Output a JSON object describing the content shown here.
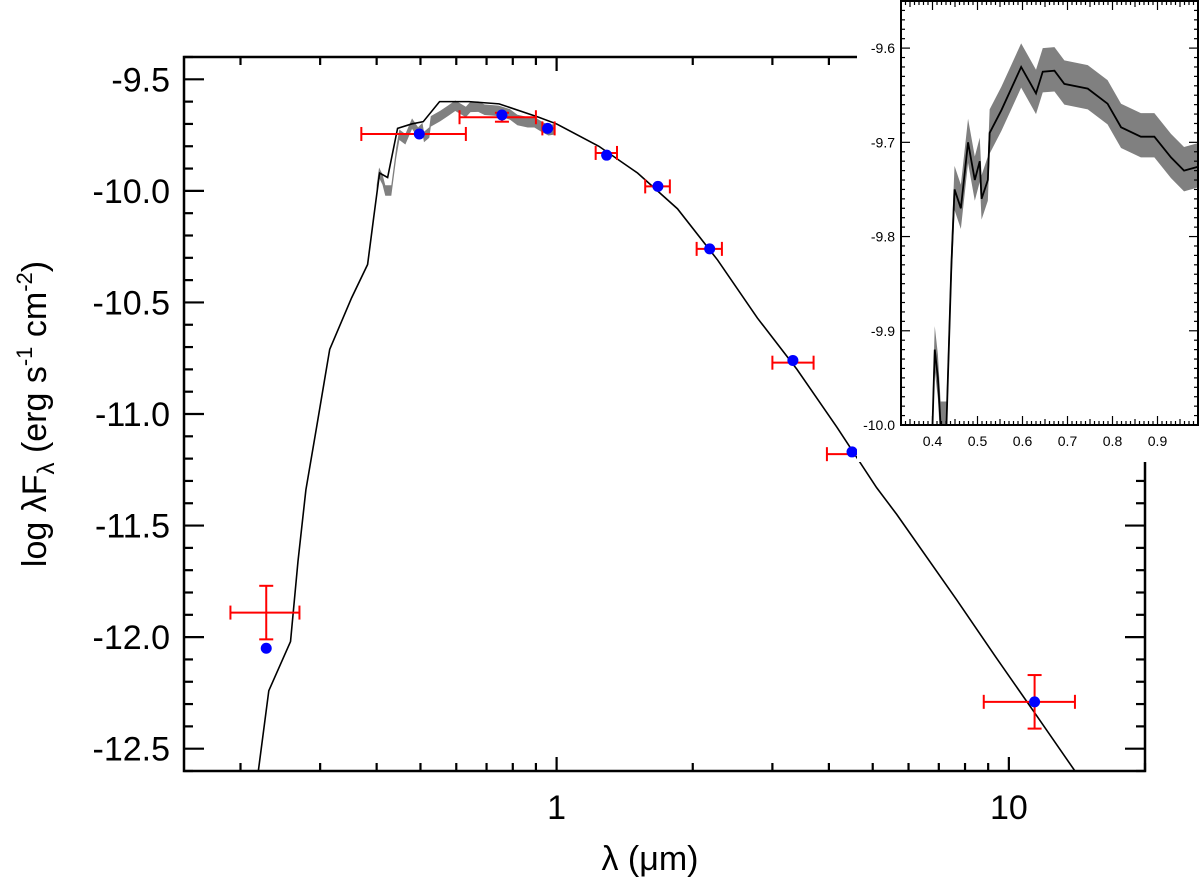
{
  "chart_data": [
    {
      "type": "scatter",
      "xlabel": "λ (μm)",
      "ylabel": "log λF",
      "ylabel_sub": "λ",
      "ylabel_units": " (erg s",
      "ylabel_units2": " cm",
      "ylabel_exp1": "-1",
      "ylabel_exp2": "-2",
      "ylabel_close": ")",
      "xscale": "log",
      "xlim": [
        0.15,
        20
      ],
      "ylim": [
        -12.6,
        -9.4
      ],
      "xticks": [
        {
          "v": 1,
          "label": "1"
        },
        {
          "v": 10,
          "label": "10"
        }
      ],
      "yticks": [
        {
          "v": -9.5,
          "label": "-9.5"
        },
        {
          "v": -10.0,
          "label": "-10.0"
        },
        {
          "v": -10.5,
          "label": "-10.5"
        },
        {
          "v": -11.0,
          "label": "-11.0"
        },
        {
          "v": -11.5,
          "label": "-11.5"
        },
        {
          "v": -12.0,
          "label": "-12.0"
        },
        {
          "v": -12.5,
          "label": "-12.5"
        }
      ],
      "grid": false,
      "colors": {
        "observed": "#ff0000",
        "model_points": "#0000ff",
        "model_spectrum": "#000000",
        "spectrum_band": "#808080"
      },
      "observed": [
        {
          "lambda": 0.228,
          "lambda_lo": 0.19,
          "lambda_hi": 0.27,
          "flux": -11.89,
          "flux_err": 0.12
        },
        {
          "lambda": 0.497,
          "lambda_lo": 0.37,
          "lambda_hi": 0.63,
          "flux": -9.745,
          "flux_err": 0.0
        },
        {
          "lambda": 0.757,
          "lambda_lo": 0.61,
          "lambda_hi": 0.9,
          "flux": -9.67,
          "flux_err": 0.02
        },
        {
          "lambda": 0.955,
          "lambda_lo": 0.93,
          "lambda_hi": 0.99,
          "flux": -9.72,
          "flux_err": 0.0
        },
        {
          "lambda": 1.29,
          "lambda_lo": 1.22,
          "lambda_hi": 1.36,
          "flux": -9.83,
          "flux_err": 0.0
        },
        {
          "lambda": 1.675,
          "lambda_lo": 1.57,
          "lambda_hi": 1.78,
          "flux": -9.98,
          "flux_err": 0.0
        },
        {
          "lambda": 2.18,
          "lambda_lo": 2.04,
          "lambda_hi": 2.32,
          "flux": -10.26,
          "flux_err": 0.0
        },
        {
          "lambda": 3.33,
          "lambda_lo": 3.0,
          "lambda_hi": 3.7,
          "flux": -10.77,
          "flux_err": 0.0
        },
        {
          "lambda": 4.5,
          "lambda_lo": 3.96,
          "lambda_hi": 5.1,
          "flux": -11.18,
          "flux_err": 0.0
        },
        {
          "lambda": 11.4,
          "lambda_lo": 8.8,
          "lambda_hi": 14.0,
          "flux": -12.29,
          "flux_err": 0.12
        }
      ],
      "model_points": [
        {
          "lambda": 0.228,
          "flux": -12.05
        },
        {
          "lambda": 0.497,
          "flux": -9.745
        },
        {
          "lambda": 0.757,
          "flux": -9.66
        },
        {
          "lambda": 0.955,
          "flux": -9.72
        },
        {
          "lambda": 1.29,
          "flux": -9.84
        },
        {
          "lambda": 1.675,
          "flux": -9.98
        },
        {
          "lambda": 2.18,
          "flux": -10.26
        },
        {
          "lambda": 3.33,
          "flux": -10.76
        },
        {
          "lambda": 4.5,
          "flux": -11.17
        },
        {
          "lambda": 11.4,
          "flux": -12.29
        }
      ],
      "model_spectrum": [
        [
          0.219,
          -12.6
        ],
        [
          0.231,
          -12.24
        ],
        [
          0.258,
          -12.02
        ],
        [
          0.268,
          -11.66
        ],
        [
          0.279,
          -11.34
        ],
        [
          0.294,
          -11.07
        ],
        [
          0.315,
          -10.71
        ],
        [
          0.352,
          -10.48
        ],
        [
          0.382,
          -10.33
        ],
        [
          0.394,
          -10.12
        ],
        [
          0.406,
          -9.92
        ],
        [
          0.423,
          -9.94
        ],
        [
          0.445,
          -9.72
        ],
        [
          0.478,
          -9.7
        ],
        [
          0.507,
          -9.69
        ],
        [
          0.551,
          -9.6
        ],
        [
          0.641,
          -9.6
        ],
        [
          0.746,
          -9.61
        ],
        [
          0.913,
          -9.67
        ],
        [
          1.0,
          -9.7
        ],
        [
          1.24,
          -9.8
        ],
        [
          1.51,
          -9.92
        ],
        [
          1.85,
          -10.08
        ],
        [
          2.27,
          -10.31
        ],
        [
          2.78,
          -10.57
        ],
        [
          3.4,
          -10.8
        ],
        [
          4.17,
          -11.06
        ],
        [
          5.1,
          -11.33
        ],
        [
          5.65,
          -11.45
        ],
        [
          7.65,
          -11.83
        ],
        [
          9.36,
          -12.09
        ],
        [
          11.5,
          -12.35
        ],
        [
          14.0,
          -12.6
        ]
      ]
    },
    {
      "type": "line",
      "xlim": [
        0.33,
        0.99
      ],
      "ylim": [
        -10.0,
        -9.55
      ],
      "xticks": [
        {
          "v": 0.4,
          "label": "0.4"
        },
        {
          "v": 0.5,
          "label": "0.5"
        },
        {
          "v": 0.6,
          "label": "0.6"
        },
        {
          "v": 0.7,
          "label": "0.7"
        },
        {
          "v": 0.8,
          "label": "0.8"
        },
        {
          "v": 0.9,
          "label": "0.9"
        }
      ],
      "yticks": [
        {
          "v": -9.6,
          "label": "-9.6"
        },
        {
          "v": -9.7,
          "label": "-9.7"
        },
        {
          "v": -9.8,
          "label": "-9.8"
        },
        {
          "v": -9.9,
          "label": "-9.9"
        },
        {
          "v": -10.0,
          "label": "-10.0"
        }
      ],
      "grid": false,
      "spectrum": [
        [
          0.4,
          -10.0
        ],
        [
          0.405,
          -9.92
        ],
        [
          0.412,
          -9.95
        ],
        [
          0.418,
          -10.0
        ],
        [
          0.431,
          -10.0
        ],
        [
          0.442,
          -9.83
        ],
        [
          0.449,
          -9.75
        ],
        [
          0.463,
          -9.77
        ],
        [
          0.479,
          -9.7
        ],
        [
          0.494,
          -9.74
        ],
        [
          0.505,
          -9.72
        ],
        [
          0.509,
          -9.76
        ],
        [
          0.523,
          -9.74
        ],
        [
          0.527,
          -9.69
        ],
        [
          0.553,
          -9.666
        ],
        [
          0.575,
          -9.643
        ],
        [
          0.597,
          -9.62
        ],
        [
          0.63,
          -9.648
        ],
        [
          0.645,
          -9.625
        ],
        [
          0.671,
          -9.624
        ],
        [
          0.693,
          -9.638
        ],
        [
          0.745,
          -9.643
        ],
        [
          0.789,
          -9.659
        ],
        [
          0.819,
          -9.684
        ],
        [
          0.863,
          -9.694
        ],
        [
          0.893,
          -9.694
        ],
        [
          0.93,
          -9.716
        ],
        [
          0.959,
          -9.73
        ],
        [
          0.989,
          -9.726
        ]
      ],
      "band_upper_offset": 0.025,
      "band_lower_offset": -0.022
    }
  ]
}
